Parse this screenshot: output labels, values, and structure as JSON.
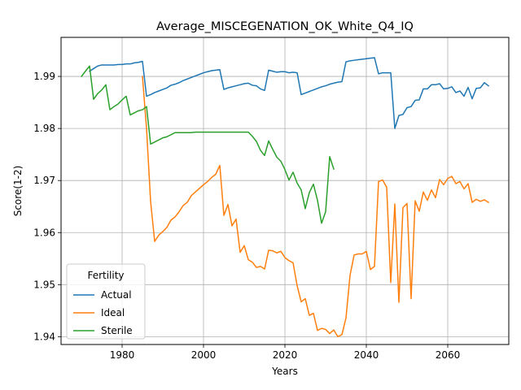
{
  "chart_data": {
    "type": "line",
    "title": "Average_MISCEGENATION_OK_White_Q4_IQ",
    "xlabel": "Years",
    "ylabel": "Score(1-2)",
    "xlim": [
      1965,
      2075
    ],
    "ylim": [
      1.9385,
      1.9975
    ],
    "xticks": [
      1980,
      2000,
      2020,
      2040,
      2060
    ],
    "yticks": [
      1.94,
      1.95,
      1.96,
      1.97,
      1.98,
      1.99
    ],
    "grid": true,
    "legend": {
      "title": "Fertility",
      "placement": "lower-left"
    },
    "series": [
      {
        "name": "Actual",
        "color": "#1f77b4",
        "x": [
          1972,
          1973,
          1974,
          1975,
          1976,
          1977,
          1978,
          1979,
          1980,
          1981,
          1982,
          1983,
          1984,
          1985,
          1986,
          1987,
          1988,
          1989,
          1990,
          1991,
          1992,
          1993,
          1994,
          1995,
          1996,
          1997,
          1998,
          1999,
          2000,
          2001,
          2002,
          2003,
          2004,
          2005,
          2006,
          2007,
          2008,
          2009,
          2010,
          2011,
          2012,
          2013,
          2014,
          2015,
          2016,
          2017,
          2018,
          2019,
          2020,
          2021,
          2022,
          2023,
          2024,
          2025,
          2026,
          2027,
          2028,
          2029,
          2030,
          2031,
          2032,
          2033,
          2034,
          2035,
          2036,
          2037,
          2038,
          2039,
          2040,
          2041,
          2042,
          2043,
          2044,
          2045,
          2046,
          2047,
          2048,
          2049,
          2050,
          2051,
          2052,
          2053,
          2054,
          2055,
          2056,
          2057,
          2058,
          2059,
          2060,
          2061,
          2062,
          2063,
          2064,
          2065,
          2066,
          2067,
          2068,
          2069,
          2070
        ],
        "y": [
          1.991,
          1.9915,
          1.992,
          1.9922,
          1.9922,
          1.9922,
          1.9922,
          1.9923,
          1.9923,
          1.9924,
          1.9924,
          1.9926,
          1.9927,
          1.9929,
          1.9862,
          1.9865,
          1.9869,
          1.9872,
          1.9875,
          1.9878,
          1.9883,
          1.9885,
          1.9888,
          1.9892,
          1.9895,
          1.9898,
          1.9901,
          1.9904,
          1.9907,
          1.9909,
          1.9911,
          1.9912,
          1.9913,
          1.9875,
          1.9878,
          1.988,
          1.9882,
          1.9884,
          1.9886,
          1.9887,
          1.9883,
          1.9882,
          1.9876,
          1.9873,
          1.9912,
          1.991,
          1.9908,
          1.9909,
          1.9909,
          1.9907,
          1.9908,
          1.9907,
          1.9865,
          1.9868,
          1.9871,
          1.9874,
          1.9877,
          1.988,
          1.9882,
          1.9885,
          1.9887,
          1.9889,
          1.989,
          1.9928,
          1.993,
          1.9931,
          1.9932,
          1.9933,
          1.9934,
          1.9935,
          1.9936,
          1.9905,
          1.9907,
          1.9907,
          1.9907,
          1.98,
          1.9825,
          1.9827,
          1.984,
          1.9842,
          1.9854,
          1.9855,
          1.9876,
          1.9876,
          1.9884,
          1.9884,
          1.9886,
          1.9876,
          1.9877,
          1.988,
          1.9869,
          1.9872,
          1.9862,
          1.9879,
          1.9857,
          1.9877,
          1.9878,
          1.9888,
          1.9882
        ]
      },
      {
        "name": "Ideal",
        "color": "#ff7f0e",
        "x": [
          1985,
          1986,
          1987,
          1988,
          1989,
          1990,
          1991,
          1992,
          1993,
          1994,
          1995,
          1996,
          1997,
          1998,
          1999,
          2000,
          2001,
          2002,
          2003,
          2004,
          2005,
          2006,
          2007,
          2008,
          2009,
          2010,
          2011,
          2012,
          2013,
          2014,
          2015,
          2016,
          2017,
          2018,
          2019,
          2020,
          2021,
          2022,
          2023,
          2024,
          2025,
          2026,
          2027,
          2028,
          2029,
          2030,
          2031,
          2032,
          2033,
          2034,
          2035,
          2036,
          2037,
          2038,
          2039,
          2040,
          2041,
          2042,
          2043,
          2044,
          2045,
          2046,
          2047,
          2048,
          2049,
          2050,
          2051,
          2052,
          2053,
          2054,
          2055,
          2056,
          2057,
          2058,
          2059,
          2060,
          2061,
          2062,
          2063,
          2064,
          2065,
          2066,
          2067,
          2068,
          2069,
          2070
        ],
        "y": [
          1.99,
          1.98,
          1.966,
          1.9583,
          1.9595,
          1.9602,
          1.961,
          1.9624,
          1.963,
          1.964,
          1.9652,
          1.9658,
          1.9671,
          1.9678,
          1.9685,
          1.9692,
          1.9698,
          1.9706,
          1.9712,
          1.9729,
          1.9633,
          1.9654,
          1.9613,
          1.9626,
          1.9562,
          1.9575,
          1.9548,
          1.9543,
          1.9533,
          1.9535,
          1.953,
          1.9566,
          1.9565,
          1.9561,
          1.9564,
          1.9552,
          1.9546,
          1.9542,
          1.9498,
          1.9467,
          1.9473,
          1.9441,
          1.9445,
          1.9412,
          1.9416,
          1.9414,
          1.9406,
          1.9413,
          1.94,
          1.9404,
          1.9436,
          1.9518,
          1.9557,
          1.9559,
          1.9559,
          1.9564,
          1.9529,
          1.9535,
          1.9698,
          1.9701,
          1.9687,
          1.9504,
          1.9655,
          1.9466,
          1.9648,
          1.9656,
          1.9473,
          1.9661,
          1.9641,
          1.9678,
          1.9662,
          1.9682,
          1.9667,
          1.9702,
          1.9692,
          1.9704,
          1.9708,
          1.9694,
          1.9698,
          1.9684,
          1.9694,
          1.9658,
          1.9664,
          1.966,
          1.9663,
          1.9658
        ]
      },
      {
        "name": "Sterile",
        "color": "#2ca02c",
        "x": [
          1970,
          1971,
          1972,
          1973,
          1974,
          1975,
          1976,
          1977,
          1978,
          1979,
          1980,
          1981,
          1982,
          1983,
          1984,
          1985,
          1986,
          1987,
          1988,
          1989,
          1990,
          1991,
          1992,
          1993,
          1994,
          1995,
          1996,
          1997,
          1998,
          1999,
          2000,
          2001,
          2002,
          2003,
          2004,
          2005,
          2006,
          2007,
          2008,
          2009,
          2010,
          2011,
          2012,
          2013,
          2014,
          2015,
          2016,
          2017,
          2018,
          2019,
          2020,
          2021,
          2022,
          2023,
          2024,
          2025,
          2026,
          2027,
          2028,
          2029,
          2030,
          2031,
          2032
        ],
        "y": [
          1.99,
          1.991,
          1.992,
          1.9856,
          1.9867,
          1.9874,
          1.9884,
          1.9836,
          1.9842,
          1.9847,
          1.9855,
          1.9862,
          1.9826,
          1.983,
          1.9834,
          1.9836,
          1.9842,
          1.977,
          1.9774,
          1.9778,
          1.9782,
          1.9784,
          1.9788,
          1.9792,
          1.9792,
          1.9792,
          1.9792,
          1.9792,
          1.9793,
          1.9793,
          1.9793,
          1.9793,
          1.9793,
          1.9793,
          1.9793,
          1.9793,
          1.9793,
          1.9793,
          1.9793,
          1.9793,
          1.9793,
          1.9793,
          1.9785,
          1.9775,
          1.9758,
          1.9748,
          1.9776,
          1.976,
          1.9745,
          1.9737,
          1.9721,
          1.9701,
          1.9716,
          1.9695,
          1.9682,
          1.9646,
          1.9677,
          1.9693,
          1.9662,
          1.9618,
          1.964,
          1.9746,
          1.9722
        ]
      }
    ]
  }
}
